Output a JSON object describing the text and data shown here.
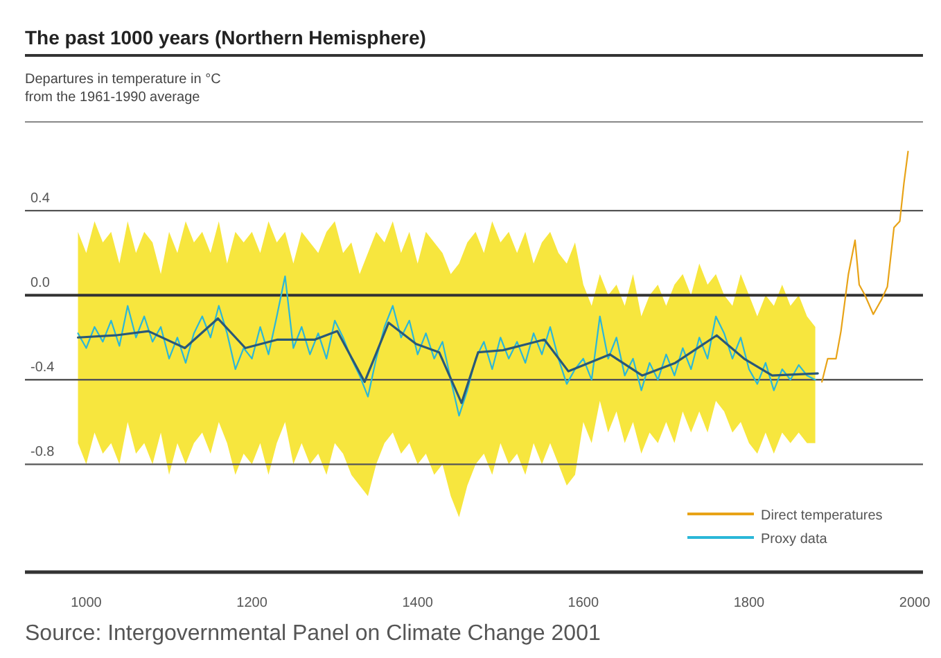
{
  "chart_data": {
    "type": "line",
    "title": "The past 1000 years (Northern Hemisphere)",
    "ylabel": "Departures in temperature in °C\nfrom the 1961-1990 average",
    "annotations": [
      "Source: Intergovernmental Panel on Climate Change 2001"
    ],
    "xlim": [
      926,
      2010
    ],
    "xticks": [
      1000,
      1200,
      1400,
      1600,
      1800,
      2000
    ],
    "ylim": [
      -1.31,
      0.82
    ],
    "yticks": [
      0.4,
      {
        "value": 0,
        "label": "0.0"
      },
      -0.4,
      -0.8
    ],
    "grid": "y",
    "legend": "bottom right",
    "series": [
      {
        "name": "Proxy data",
        "color": "#2bb7d8",
        "x": [
          990,
          1000,
          1010,
          1020,
          1030,
          1040,
          1050,
          1060,
          1070,
          1080,
          1090,
          1100,
          1110,
          1120,
          1130,
          1140,
          1150,
          1160,
          1170,
          1180,
          1190,
          1200,
          1210,
          1220,
          1230,
          1240,
          1250,
          1260,
          1270,
          1280,
          1290,
          1300,
          1310,
          1320,
          1330,
          1340,
          1350,
          1360,
          1370,
          1380,
          1390,
          1400,
          1410,
          1420,
          1430,
          1440,
          1450,
          1460,
          1470,
          1480,
          1490,
          1500,
          1510,
          1520,
          1530,
          1540,
          1550,
          1560,
          1570,
          1580,
          1590,
          1600,
          1610,
          1620,
          1630,
          1640,
          1650,
          1660,
          1670,
          1680,
          1690,
          1700,
          1710,
          1720,
          1730,
          1740,
          1750,
          1760,
          1770,
          1780,
          1790,
          1800,
          1810,
          1820,
          1830,
          1840,
          1850,
          1860,
          1870,
          1880
        ],
        "values": [
          -0.18,
          -0.25,
          -0.15,
          -0.22,
          -0.12,
          -0.24,
          -0.05,
          -0.2,
          -0.1,
          -0.22,
          -0.15,
          -0.3,
          -0.2,
          -0.32,
          -0.18,
          -0.1,
          -0.2,
          -0.05,
          -0.18,
          -0.35,
          -0.25,
          -0.3,
          -0.15,
          -0.28,
          -0.1,
          0.09,
          -0.25,
          -0.15,
          -0.28,
          -0.18,
          -0.3,
          -0.12,
          -0.2,
          -0.3,
          -0.38,
          -0.48,
          -0.3,
          -0.15,
          -0.05,
          -0.2,
          -0.12,
          -0.28,
          -0.18,
          -0.3,
          -0.22,
          -0.4,
          -0.57,
          -0.45,
          -0.3,
          -0.22,
          -0.35,
          -0.2,
          -0.3,
          -0.22,
          -0.32,
          -0.18,
          -0.28,
          -0.15,
          -0.3,
          -0.42,
          -0.35,
          -0.3,
          -0.4,
          -0.1,
          -0.3,
          -0.2,
          -0.38,
          -0.3,
          -0.45,
          -0.32,
          -0.4,
          -0.28,
          -0.38,
          -0.25,
          -0.35,
          -0.2,
          -0.3,
          -0.1,
          -0.18,
          -0.3,
          -0.2,
          -0.35,
          -0.42,
          -0.32,
          -0.45,
          -0.35,
          -0.4,
          -0.33,
          -0.38,
          -0.4
        ],
        "upper": [
          0.3,
          0.2,
          0.35,
          0.25,
          0.3,
          0.15,
          0.35,
          0.2,
          0.3,
          0.25,
          0.1,
          0.3,
          0.2,
          0.35,
          0.25,
          0.3,
          0.2,
          0.35,
          0.15,
          0.3,
          0.25,
          0.3,
          0.2,
          0.35,
          0.25,
          0.3,
          0.15,
          0.3,
          0.25,
          0.2,
          0.3,
          0.35,
          0.2,
          0.25,
          0.1,
          0.2,
          0.3,
          0.25,
          0.35,
          0.2,
          0.3,
          0.15,
          0.3,
          0.25,
          0.2,
          0.1,
          0.15,
          0.25,
          0.3,
          0.2,
          0.35,
          0.25,
          0.3,
          0.2,
          0.3,
          0.15,
          0.25,
          0.3,
          0.2,
          0.15,
          0.25,
          0.05,
          -0.05,
          0.1,
          0.0,
          0.05,
          -0.05,
          0.1,
          -0.1,
          0.0,
          0.05,
          -0.05,
          0.05,
          0.1,
          0.0,
          0.15,
          0.05,
          0.1,
          0.0,
          -0.05,
          0.1,
          0.0,
          -0.1,
          0.0,
          -0.05,
          0.05,
          -0.05,
          0.0,
          -0.1,
          -0.15
        ],
        "lower": [
          -0.7,
          -0.8,
          -0.65,
          -0.75,
          -0.7,
          -0.8,
          -0.6,
          -0.75,
          -0.7,
          -0.8,
          -0.65,
          -0.85,
          -0.7,
          -0.8,
          -0.7,
          -0.65,
          -0.75,
          -0.6,
          -0.7,
          -0.85,
          -0.75,
          -0.8,
          -0.7,
          -0.85,
          -0.7,
          -0.6,
          -0.8,
          -0.7,
          -0.8,
          -0.75,
          -0.85,
          -0.7,
          -0.75,
          -0.85,
          -0.9,
          -0.95,
          -0.8,
          -0.7,
          -0.65,
          -0.75,
          -0.7,
          -0.8,
          -0.75,
          -0.85,
          -0.8,
          -0.95,
          -1.05,
          -0.9,
          -0.8,
          -0.75,
          -0.85,
          -0.7,
          -0.8,
          -0.75,
          -0.85,
          -0.7,
          -0.8,
          -0.7,
          -0.8,
          -0.9,
          -0.85,
          -0.6,
          -0.7,
          -0.5,
          -0.65,
          -0.55,
          -0.7,
          -0.6,
          -0.75,
          -0.65,
          -0.7,
          -0.6,
          -0.7,
          -0.55,
          -0.65,
          -0.55,
          -0.65,
          -0.5,
          -0.55,
          -0.65,
          -0.6,
          -0.7,
          -0.75,
          -0.65,
          -0.75,
          -0.65,
          -0.7,
          -0.65,
          -0.7,
          -0.7
        ]
      },
      {
        "color": "#2a5878",
        "x": [
          990,
          1035,
          1075,
          1119,
          1159,
          1192,
          1231,
          1276,
          1303,
          1336,
          1365,
          1398,
          1426,
          1453,
          1473,
          1503,
          1553,
          1582,
          1632,
          1671,
          1711,
          1761,
          1794,
          1828,
          1883
        ],
        "values": [
          -0.2,
          -0.19,
          -0.17,
          -0.25,
          -0.11,
          -0.25,
          -0.21,
          -0.21,
          -0.17,
          -0.41,
          -0.13,
          -0.23,
          -0.27,
          -0.51,
          -0.27,
          -0.26,
          -0.21,
          -0.36,
          -0.28,
          -0.38,
          -0.32,
          -0.19,
          -0.3,
          -0.38,
          -0.37
        ]
      },
      {
        "name": "Direct temperatures",
        "color": "#e8a317",
        "x": [
          1888,
          1895,
          1905,
          1911,
          1920,
          1928,
          1933,
          1940,
          1950,
          1960,
          1967,
          1975,
          1982,
          1987,
          1992
        ],
        "values": [
          -0.41,
          -0.3,
          -0.3,
          -0.17,
          0.1,
          0.26,
          0.05,
          0.0,
          -0.09,
          -0.02,
          0.04,
          0.32,
          0.35,
          0.53,
          0.68
        ]
      }
    ]
  }
}
